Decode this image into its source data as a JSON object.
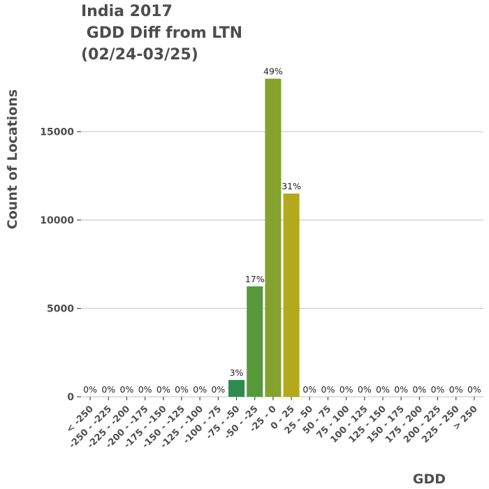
{
  "chart_data": {
    "type": "bar",
    "title": [
      "India 2017",
      " GDD Diff from LTN",
      "(02/24-03/25)"
    ],
    "xlabel": "GDD",
    "ylabel": "Count of Locations",
    "ylim": [
      0,
      18500
    ],
    "yticks": [
      0,
      5000,
      10000,
      15000
    ],
    "ytick_labels": [
      "0",
      "5000",
      "10000",
      "15000"
    ],
    "grid": "horizontal",
    "legend": "none",
    "categories": [
      "< -250",
      "-250 - -225",
      "-225 - -200",
      "-200 - -175",
      "-175 - -150",
      "-150 - -125",
      "-125 - -100",
      "-100 - -75",
      "-75 - -50",
      "-50 - -25",
      "-25 - 0",
      "0 - 25",
      "25 - 50",
      "50 - 75",
      "75 - 100",
      "100 - 125",
      "125 - 150",
      "150 - 175",
      "175 - 200",
      "200 - 225",
      "225 - 250",
      "> 250"
    ],
    "values": [
      0,
      0,
      0,
      0,
      0,
      0,
      0,
      0,
      950,
      6250,
      18000,
      11500,
      0,
      0,
      0,
      0,
      0,
      0,
      0,
      0,
      0,
      0
    ],
    "data_labels": [
      "0%",
      "0%",
      "0%",
      "0%",
      "0%",
      "0%",
      "0%",
      "0%",
      "3%",
      "17%",
      "49%",
      "31%",
      "0%",
      "0%",
      "0%",
      "0%",
      "0%",
      "0%",
      "0%",
      "0%",
      "0%",
      "0%"
    ],
    "colors": [
      "#2e8b4f",
      "#2e8b4f",
      "#2e8b4f",
      "#2e8b4f",
      "#2e8b4f",
      "#2e8b4f",
      "#2e8b4f",
      "#2e8b4f",
      "#2e8b4f",
      "#56993a",
      "#84a22c",
      "#b2aa1c",
      "#c2ac18",
      "#c2ac18",
      "#c2ac18",
      "#c2ac18",
      "#c2ac18",
      "#c2ac18",
      "#c2ac18",
      "#c2ac18",
      "#c2ac18",
      "#c2ac18"
    ]
  }
}
